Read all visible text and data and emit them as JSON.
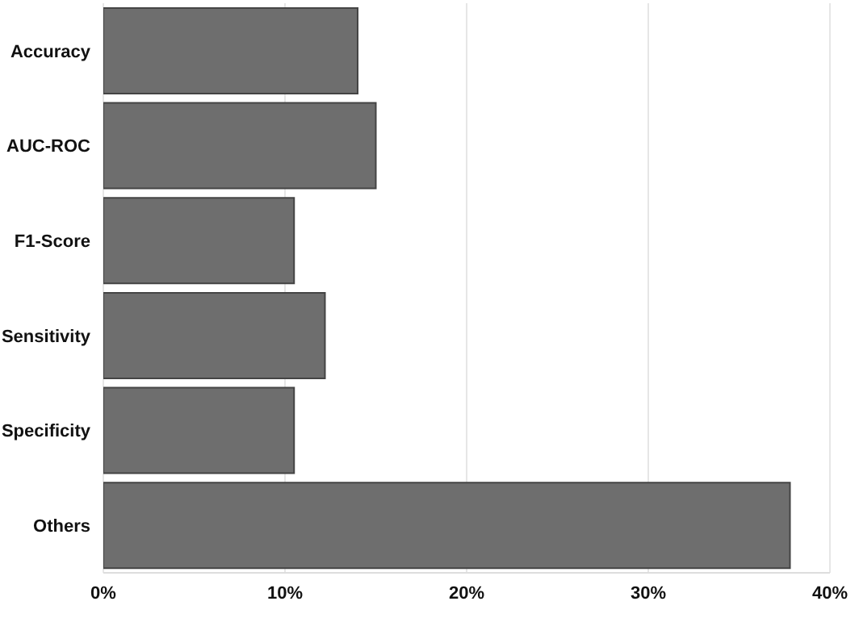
{
  "chart_data": {
    "type": "bar",
    "orientation": "horizontal",
    "categories": [
      "Accuracy",
      "AUC-ROC",
      "F1-Score",
      "Sensitivity",
      "Specificity",
      "Others"
    ],
    "values": [
      14.0,
      15.0,
      10.5,
      12.2,
      10.5,
      37.8
    ],
    "color": "#6e6e6e",
    "xlim": [
      0,
      40
    ],
    "xticks": [
      {
        "value": 0,
        "label": "0%"
      },
      {
        "value": 10,
        "label": "10%"
      },
      {
        "value": 20,
        "label": "20%"
      },
      {
        "value": 30,
        "label": "30%"
      },
      {
        "value": 40,
        "label": "40%"
      }
    ],
    "grid": "x",
    "legend": false
  }
}
